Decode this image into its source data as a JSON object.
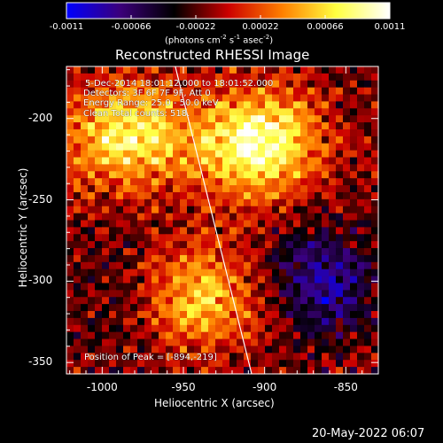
{
  "colorbar": {
    "ticks": [
      "-0.0011",
      "-0.00066",
      "-0.00022",
      "0.00022",
      "0.00066",
      "0.0011"
    ],
    "range": [
      -0.0011,
      0.0011
    ],
    "units_text": "(photons cm",
    "units_sup1": "-2",
    "units_mid1": " s",
    "units_sup2": "-1",
    "units_mid2": " asec",
    "units_sup3": "-2",
    "units_end": ")",
    "colors": [
      "#0000ff",
      "#3b007a",
      "#000000",
      "#cc0000",
      "#ff7f00",
      "#ffff40",
      "#ffffff"
    ]
  },
  "title": "Reconstructed RHESSI Image",
  "annotations": {
    "line1": "5-Dec-2014 18:01:12.000 to 18:01:52.000",
    "line2": "Detectors: 3F 6F 7F 9F, Att 0",
    "line3": "Energy Range: 25.0 - 50.0 keV",
    "line4": "Clean    Total counts: 518.",
    "peak": "Position of Peak = [-894,-219]"
  },
  "axes": {
    "xlabel": "Heliocentric X (arcsec)",
    "ylabel": "Heliocentric Y (arcsec)",
    "x_ticks": [
      "-1000",
      "-950",
      "-900",
      "-850"
    ],
    "y_ticks": [
      "-200",
      "-250",
      "-300",
      "-350"
    ]
  },
  "chart_data": {
    "type": "heatmap",
    "title": "Reconstructed RHESSI Image",
    "xlabel": "Heliocentric X (arcsec)",
    "ylabel": "Heliocentric Y (arcsec)",
    "xlim": [
      -1022,
      -830
    ],
    "ylim": [
      -357,
      -168
    ],
    "x_ticks": [
      -1000,
      -950,
      -900,
      -850
    ],
    "y_ticks": [
      -200,
      -250,
      -300,
      -350
    ],
    "value_range": [
      -0.0011,
      0.0011
    ],
    "peak": [
      -894,
      -219
    ],
    "limb_line": [
      [
        -955,
        -168
      ],
      [
        -908,
        -357
      ]
    ],
    "bright_regions": [
      {
        "x": -985,
        "y": -210,
        "level": 0.85
      },
      {
        "x": -905,
        "y": -215,
        "level": 1.0
      },
      {
        "x": -945,
        "y": -310,
        "level": 0.75
      }
    ],
    "dim_regions": [
      {
        "x": -865,
        "y": -300,
        "level": -0.6
      },
      {
        "x": -975,
        "y": -310,
        "level": -0.3
      }
    ]
  },
  "timestamp": "20-May-2022 06:07"
}
